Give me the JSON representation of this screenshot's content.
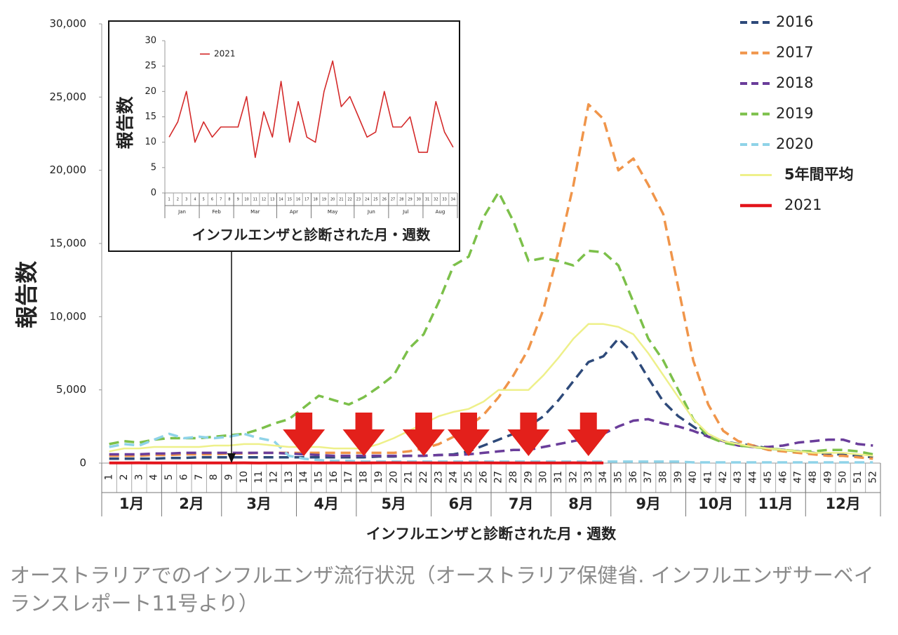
{
  "chart_data": [
    {
      "type": "line",
      "y_label": "報告数",
      "x_label": "インフルエンザと診断された月・週数",
      "categories": [
        "1",
        "2",
        "3",
        "4",
        "5",
        "6",
        "7",
        "8",
        "9",
        "10",
        "11",
        "12",
        "13",
        "14",
        "15",
        "16",
        "17",
        "18",
        "19",
        "20",
        "21",
        "22",
        "23",
        "24",
        "25",
        "26",
        "27",
        "28",
        "29",
        "30",
        "31",
        "32",
        "33",
        "34",
        "35",
        "36",
        "37",
        "38",
        "39",
        "40",
        "41",
        "42",
        "43",
        "44",
        "45",
        "46",
        "47",
        "48",
        "49",
        "50",
        "51",
        "52"
      ],
      "months": [
        "1月",
        "2月",
        "3月",
        "4月",
        "5月",
        "6月",
        "7月",
        "8月",
        "9月",
        "10月",
        "11月",
        "12月"
      ],
      "ylim": [
        0,
        30000
      ],
      "yticks": [
        0,
        {
          "value": 5000,
          "label": "5,000"
        },
        {
          "value": 10000,
          "label": "10,000"
        },
        {
          "value": 15000,
          "label": "15,000"
        },
        {
          "value": 20000,
          "label": "20,000"
        },
        {
          "value": 25000,
          "label": "25,000"
        },
        {
          "value": 30000,
          "label": "30,000"
        }
      ],
      "series": [
        {
          "name": "2016",
          "color": "#2e4a7a",
          "dashed": true,
          "values": [
            300,
            300,
            300,
            300,
            350,
            350,
            400,
            400,
            400,
            400,
            400,
            400,
            400,
            400,
            400,
            400,
            400,
            400,
            450,
            450,
            500,
            500,
            550,
            600,
            800,
            1200,
            1600,
            2000,
            2500,
            3200,
            4300,
            5600,
            6900,
            7300,
            8500,
            7500,
            5800,
            4200,
            3200,
            2500,
            1800,
            1500,
            1300,
            1200,
            1000,
            900,
            800,
            700,
            600,
            600,
            500,
            400
          ]
        },
        {
          "name": "2017",
          "color": "#f0954a",
          "dashed": true,
          "values": [
            500,
            500,
            500,
            550,
            550,
            600,
            600,
            600,
            650,
            650,
            700,
            700,
            700,
            700,
            700,
            700,
            700,
            700,
            700,
            700,
            800,
            1000,
            1300,
            1800,
            2500,
            3300,
            4500,
            6000,
            7800,
            10500,
            14500,
            19000,
            24500,
            23500,
            20000,
            20800,
            19000,
            17000,
            12000,
            7000,
            4000,
            2200,
            1500,
            1200,
            900,
            800,
            700,
            600,
            500,
            500,
            400,
            300
          ]
        },
        {
          "name": "2018",
          "color": "#6a3d9a",
          "dashed": true,
          "values": [
            600,
            600,
            600,
            650,
            650,
            700,
            700,
            700,
            700,
            700,
            700,
            700,
            650,
            600,
            550,
            500,
            500,
            500,
            500,
            500,
            500,
            500,
            550,
            550,
            600,
            700,
            800,
            900,
            900,
            1100,
            1300,
            1500,
            1700,
            2000,
            2500,
            2900,
            3000,
            2700,
            2500,
            2200,
            1800,
            1500,
            1200,
            1100,
            1100,
            1200,
            1400,
            1500,
            1600,
            1600,
            1300,
            1200
          ]
        },
        {
          "name": "2019",
          "color": "#7cc04a",
          "dashed": true,
          "values": [
            1300,
            1500,
            1400,
            1600,
            1700,
            1700,
            1700,
            1800,
            1900,
            2000,
            2300,
            2700,
            3000,
            3800,
            4600,
            4300,
            4000,
            4500,
            5200,
            6000,
            7800,
            8800,
            11000,
            13500,
            14100,
            16800,
            18500,
            16500,
            13800,
            14000,
            13800,
            13500,
            14500,
            14400,
            13500,
            11000,
            8500,
            7000,
            5000,
            3000,
            1800,
            1400,
            1200,
            1100,
            1000,
            900,
            800,
            800,
            900,
            900,
            800,
            600
          ]
        },
        {
          "name": "2020",
          "color": "#8fd3e8",
          "dashed": true,
          "values": [
            1100,
            1300,
            1200,
            1600,
            2000,
            1700,
            1800,
            1700,
            1800,
            2000,
            1700,
            1500,
            500,
            300,
            200,
            150,
            150,
            100,
            100,
            100,
            100,
            100,
            100,
            100,
            100,
            100,
            100,
            100,
            100,
            100,
            100,
            100,
            100,
            100,
            100,
            100,
            100,
            100,
            100,
            50,
            50,
            50,
            50,
            50,
            50,
            50,
            50,
            50,
            50,
            50,
            50,
            50
          ]
        },
        {
          "name": "5年間平均",
          "color": "#eef08a",
          "dashed": false,
          "values": [
            800,
            1000,
            1000,
            1100,
            1100,
            1100,
            1100,
            1200,
            1200,
            1300,
            1300,
            1200,
            1100,
            1100,
            1100,
            1000,
            1000,
            1000,
            1300,
            1700,
            2200,
            2700,
            3200,
            3500,
            3700,
            4200,
            5000,
            5000,
            5000,
            6000,
            7200,
            8500,
            9500,
            9500,
            9300,
            8800,
            7500,
            6000,
            4500,
            3000,
            2000,
            1500,
            1300,
            1100,
            1000,
            900,
            800,
            700,
            700,
            700,
            600,
            500
          ]
        },
        {
          "name": "2021",
          "color": "#e3141b",
          "dashed": false,
          "values": [
            11,
            14,
            20,
            10,
            14,
            11,
            13,
            13,
            13,
            19,
            7,
            16,
            11,
            22,
            10,
            18,
            11,
            10,
            20,
            26,
            17,
            19,
            15,
            11,
            12,
            20,
            13,
            13,
            15,
            8,
            8,
            18,
            12,
            9,
            null,
            null,
            null,
            null,
            null,
            null,
            null,
            null,
            null,
            null,
            null,
            null,
            null,
            null,
            null,
            null,
            null,
            null
          ]
        }
      ]
    },
    {
      "type": "line",
      "y_label": "報告数",
      "x_label": "インフルエンザと診断された月・週数",
      "categories": [
        "1",
        "2",
        "3",
        "4",
        "5",
        "6",
        "7",
        "8",
        "9",
        "10",
        "11",
        "12",
        "13",
        "14",
        "15",
        "16",
        "17",
        "18",
        "19",
        "20",
        "21",
        "22",
        "23",
        "24",
        "25",
        "26",
        "27",
        "28",
        "29",
        "30",
        "31",
        "32",
        "33",
        "34"
      ],
      "months": [
        "Jan",
        "Feb",
        "Mar",
        "Apr",
        "May",
        "Jun",
        "Jul",
        "Aug"
      ],
      "ylim": [
        0,
        30
      ],
      "yticks": [
        0,
        5,
        10,
        15,
        20,
        25,
        30
      ],
      "series": [
        {
          "name": "2021",
          "color": "#d42a2a",
          "dashed": false,
          "values": [
            11,
            14,
            20,
            10,
            14,
            11,
            13,
            13,
            13,
            19,
            7,
            16,
            11,
            22,
            10,
            18,
            11,
            10,
            20,
            26,
            17,
            19,
            15,
            11,
            12,
            20,
            13,
            13,
            15,
            8,
            8,
            18,
            12,
            9
          ]
        }
      ]
    }
  ],
  "caption": "オーストラリアでのインフルエンザ流行状況（オーストラリア保健省. インフルエンザサーベイランスレポート11号より）"
}
